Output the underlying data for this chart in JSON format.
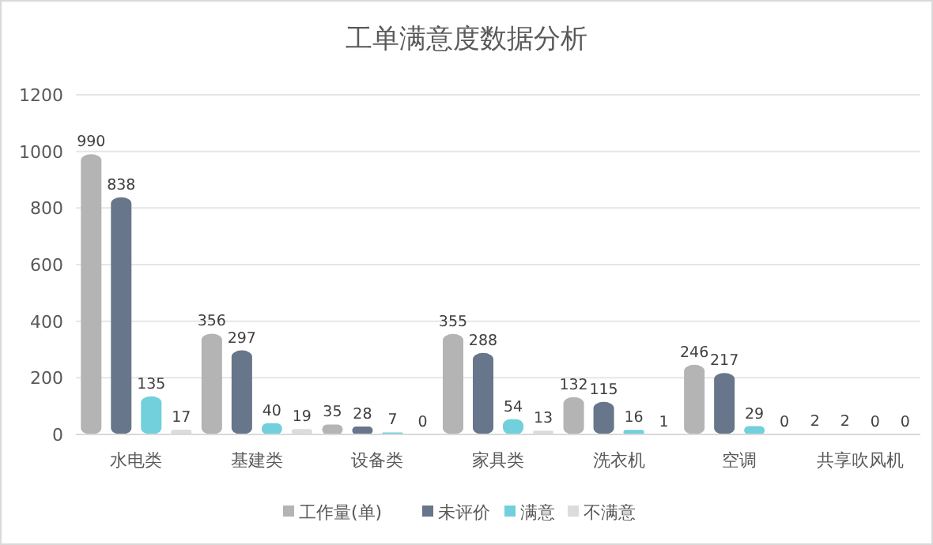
{
  "chart_data": {
    "type": "bar",
    "title": "工单满意度数据分析",
    "categories": [
      "水电类",
      "基建类",
      "设备类",
      "家具类",
      "洗衣机",
      "空调",
      "共享吹风机"
    ],
    "series": [
      {
        "name": "工作量(单)",
        "color": "#b4b4b4",
        "values": [
          990,
          356,
          35,
          355,
          132,
          246,
          2
        ]
      },
      {
        "name": "未评价",
        "color": "#67768a",
        "values": [
          838,
          297,
          28,
          288,
          115,
          217,
          2
        ]
      },
      {
        "name": "满意",
        "color": "#72cfdc",
        "values": [
          135,
          40,
          7,
          54,
          16,
          29,
          0
        ]
      },
      {
        "name": "不满意",
        "color": "#dcdcdc",
        "values": [
          17,
          19,
          0,
          13,
          1,
          0,
          0
        ]
      }
    ],
    "ylim": [
      0,
      1200
    ],
    "yticks": [
      0,
      200,
      400,
      600,
      800,
      1000,
      1200
    ],
    "grid": "y",
    "legend": "bottom",
    "data_labels": true
  }
}
